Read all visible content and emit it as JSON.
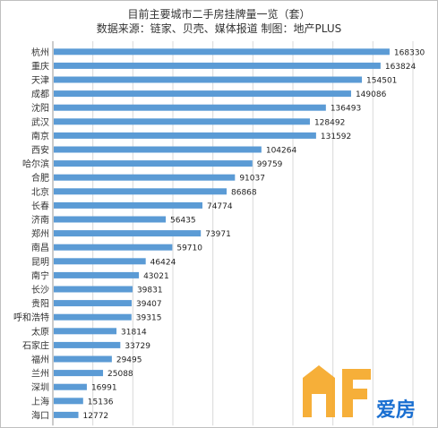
{
  "chart_data": {
    "type": "bar",
    "orientation": "horizontal",
    "title": "目前主要城市二手房挂牌量一览（套）",
    "subtitle": "数据来源：链家、贝壳、媒体报道 制图：地产PLUS",
    "categories": [
      "杭州",
      "重庆",
      "天津",
      "成都",
      "沈阳",
      "武汉",
      "南京",
      "西安",
      "哈尔滨",
      "合肥",
      "北京",
      "长春",
      "济南",
      "郑州",
      "南昌",
      "昆明",
      "南宁",
      "长沙",
      "贵阳",
      "呼和浩特",
      "太原",
      "石家庄",
      "福州",
      "兰州",
      "深圳",
      "上海",
      "海口"
    ],
    "values": [
      168330,
      163824,
      154501,
      149086,
      136493,
      128492,
      131592,
      104264,
      99759,
      91037,
      86868,
      74774,
      56435,
      73971,
      59710,
      46424,
      43021,
      39831,
      39407,
      39315,
      31814,
      33729,
      29495,
      25088,
      16991,
      15136,
      12772
    ],
    "xlim": [
      0,
      180000
    ],
    "xticks": [
      "0",
      "20000",
      "40000",
      "60000",
      "80000",
      "100000",
      "120000",
      "140000",
      "160000",
      "180000"
    ],
    "grid": true,
    "bar_color": "#5b9bd5"
  },
  "watermark": {
    "text": "爱房",
    "logo_color": "#f5a623",
    "text_color": "#1a6fd1"
  }
}
